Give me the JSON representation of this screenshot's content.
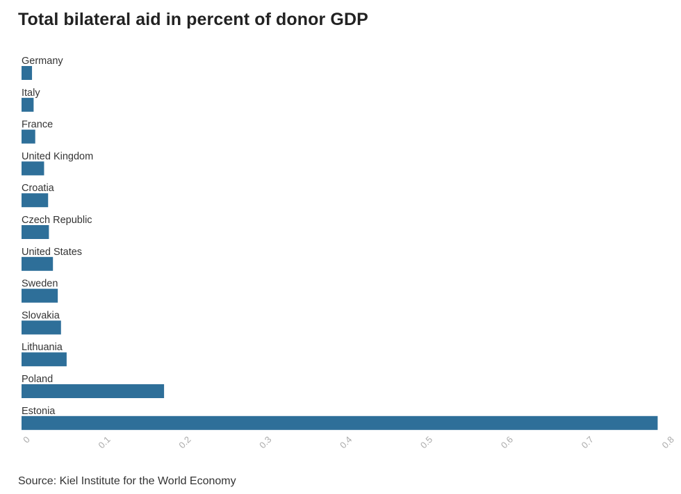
{
  "chart_data": {
    "type": "bar",
    "orientation": "horizontal",
    "title": "Total bilateral aid in percent of donor GDP",
    "categories": [
      "Germany",
      "Italy",
      "France",
      "United Kingdom",
      "Croatia",
      "Czech Republic",
      "United States",
      "Sweden",
      "Slovakia",
      "Lithuania",
      "Poland",
      "Estonia"
    ],
    "values": [
      0.013,
      0.015,
      0.017,
      0.028,
      0.033,
      0.034,
      0.039,
      0.045,
      0.049,
      0.056,
      0.177,
      0.79
    ],
    "xlim": [
      0,
      0.8
    ],
    "xticks": [
      0,
      0.1,
      0.2,
      0.3,
      0.4,
      0.5,
      0.6,
      0.7,
      0.8
    ],
    "xtick_labels": [
      "0",
      "0.1",
      "0.2",
      "0.3",
      "0.4",
      "0.5",
      "0.6",
      "0.7",
      "0.8"
    ],
    "bar_color": "#2e6f99",
    "xlabel": "",
    "ylabel": "",
    "grid": false
  },
  "source": "Source: Kiel Institute for the World Economy"
}
